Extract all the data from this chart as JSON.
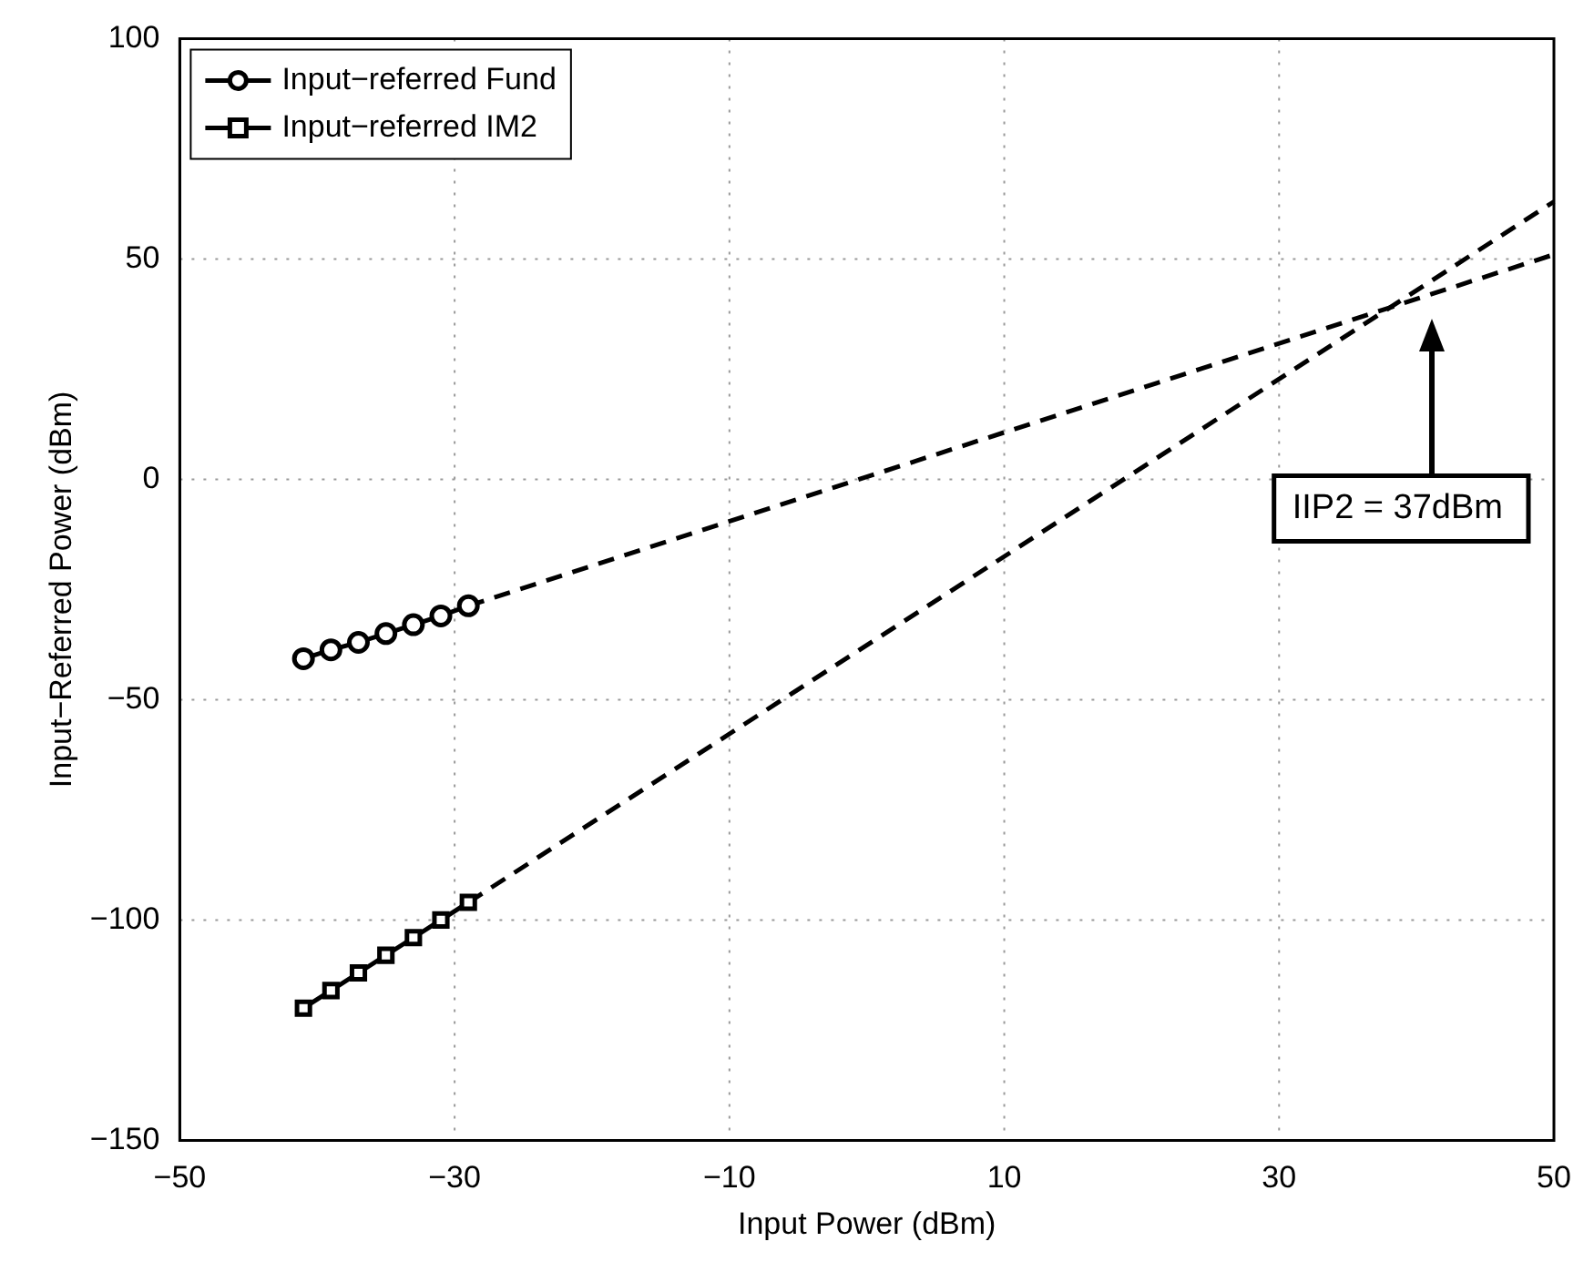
{
  "chart_data": {
    "type": "line",
    "xlabel": "Input Power (dBm)",
    "ylabel": "Input−Referred Power (dBm)",
    "xlim": [
      -50,
      50
    ],
    "xticks": [
      -50,
      -30,
      -10,
      10,
      30,
      50
    ],
    "ylim": [
      -150,
      100
    ],
    "yticks": [
      -150,
      -100,
      -50,
      0,
      50,
      100
    ],
    "grid": true,
    "legend": "top left",
    "line_style": "solid",
    "series": [
      {
        "name": "Input−referred Fund",
        "color": "#000000",
        "marker": "circle",
        "x": [
          -41,
          -39,
          -37,
          -35,
          -33,
          -31,
          -29
        ],
        "values": [
          -40.7,
          -38.7,
          -37,
          -35,
          -33,
          -31,
          -28.7
        ]
      },
      {
        "name": "Input−referred IM2",
        "color": "#000000",
        "marker": "square",
        "x": [
          -41,
          -39,
          -37,
          -35,
          -33,
          -31,
          -29
        ],
        "values": [
          -120,
          -116,
          -112,
          -108,
          -104,
          -100,
          -96
        ]
      },
      {
        "color": "#000000",
        "marker": "none",
        "line_style": "dashed",
        "x": [
          -29,
          50
        ],
        "values": [
          -28.7,
          51
        ]
      },
      {
        "color": "#000000",
        "marker": "none",
        "line_style": "dashed",
        "x": [
          -29,
          50
        ],
        "values": [
          -96,
          63
        ]
      }
    ],
    "annotations": [
      "IIP2 = 37dBm"
    ]
  }
}
